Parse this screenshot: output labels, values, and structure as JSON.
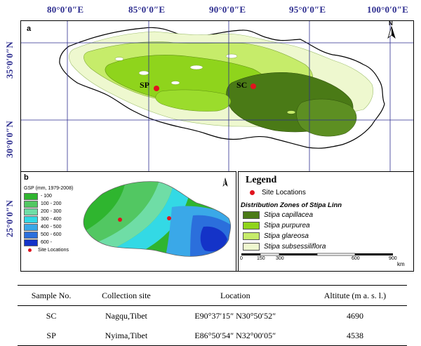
{
  "top_ticks": [
    "80°0′0″E",
    "85°0′0″E",
    "90°0′0″E",
    "95°0′0″E",
    "100°0′0″E"
  ],
  "left_ticks": [
    "35°0′0″N",
    "30°0′0″N",
    "25°0′0″N"
  ],
  "panel_a": {
    "label": "a",
    "sites": [
      {
        "code": "SP"
      },
      {
        "code": "SC"
      }
    ]
  },
  "north_label": "N",
  "panel_b": {
    "label": "b",
    "legend_title": "GSP (mm, 1979-2008)",
    "classes": [
      {
        "label": "- 100",
        "color": "#2fb52f"
      },
      {
        "label": "100 - 200",
        "color": "#52c762"
      },
      {
        "label": "200 - 300",
        "color": "#6fdda6"
      },
      {
        "label": "300 - 400",
        "color": "#33d9e5"
      },
      {
        "label": "400 - 500",
        "color": "#3aa8e8"
      },
      {
        "label": "500 - 600",
        "color": "#2b6fdc"
      },
      {
        "label": "600 -",
        "color": "#1433c8"
      }
    ],
    "site_label": "Site Locations"
  },
  "legend": {
    "title": "Legend",
    "site_label": "Site Locations",
    "zones_title": "Distribution Zones of Stipa Linn",
    "zones": [
      {
        "name": "Stipa capillacea",
        "color": "#4a7a16"
      },
      {
        "name": "Stipa purpurea",
        "color": "#8fd41c"
      },
      {
        "name": "Stipa glareosa",
        "color": "#c6ec6a"
      },
      {
        "name": "Stipa subsessiliflora",
        "color": "#eef8cf"
      }
    ],
    "scale_ticks": [
      "0",
      "150",
      "300",
      "600",
      "900"
    ],
    "scale_unit": "km",
    "site_color": "#e0141e"
  },
  "table": {
    "headers": [
      "Sample No.",
      "Collection site",
      "Location",
      "Altitute (m a. s. l.)"
    ],
    "rows": [
      [
        "SC",
        "Nagqu,Tibet",
        "E90°37′15″ N30°50′52″",
        "4690"
      ],
      [
        "SP",
        "Nyima,Tibet",
        "E86°50′54″ N32°00′05″",
        "4538"
      ]
    ]
  }
}
